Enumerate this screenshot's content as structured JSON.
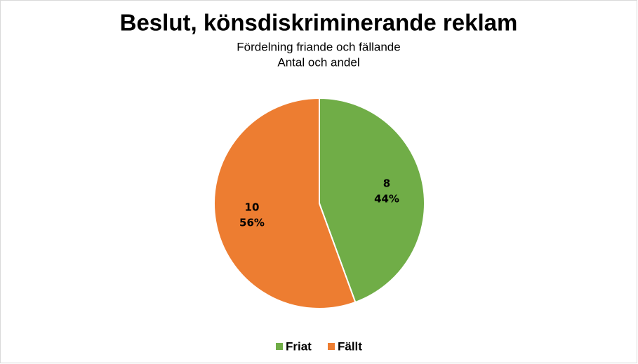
{
  "chart_data": {
    "type": "pie",
    "title": "Beslut, könsdiskriminerande reklam",
    "subtitle": [
      "Fördelning friande och fällande",
      "Antal och andel"
    ],
    "categories": [
      "Friat",
      "Fällt"
    ],
    "values": [
      8,
      10
    ],
    "shares": [
      44,
      56
    ],
    "share_labels": [
      "44%",
      "56%"
    ],
    "colors": [
      "#70ad47",
      "#ed7d31"
    ],
    "legend": "bottom"
  }
}
